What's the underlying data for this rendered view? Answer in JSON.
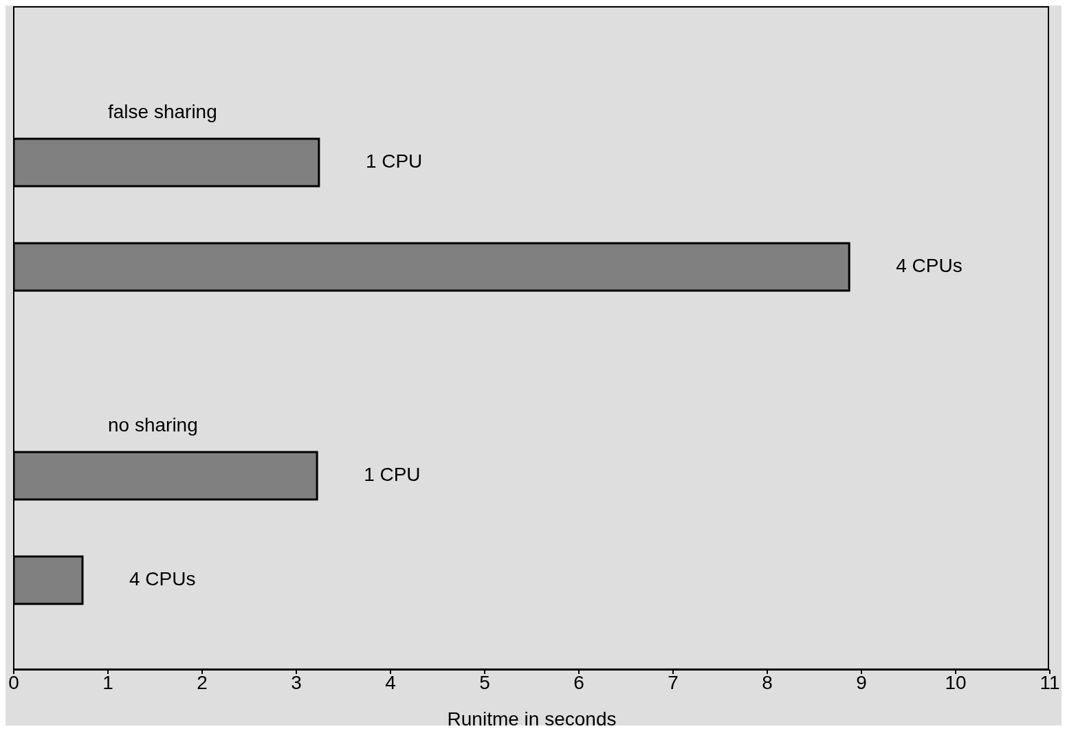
{
  "chart_data": {
    "type": "bar",
    "orientation": "horizontal",
    "xlabel": "Runitme in seconds",
    "categories": [
      "1 CPU",
      "4 CPUs",
      null,
      "1 CPU",
      "4 CPUs"
    ],
    "values": [
      3.24,
      8.87,
      null,
      3.22,
      0.73
    ],
    "color": "#808080",
    "annotations": [
      "false sharing",
      "no sharing"
    ],
    "xlim": [
      0,
      11
    ],
    "xticks": [
      0,
      1,
      2,
      3,
      4,
      5,
      6,
      7,
      8,
      9,
      10,
      11
    ]
  }
}
